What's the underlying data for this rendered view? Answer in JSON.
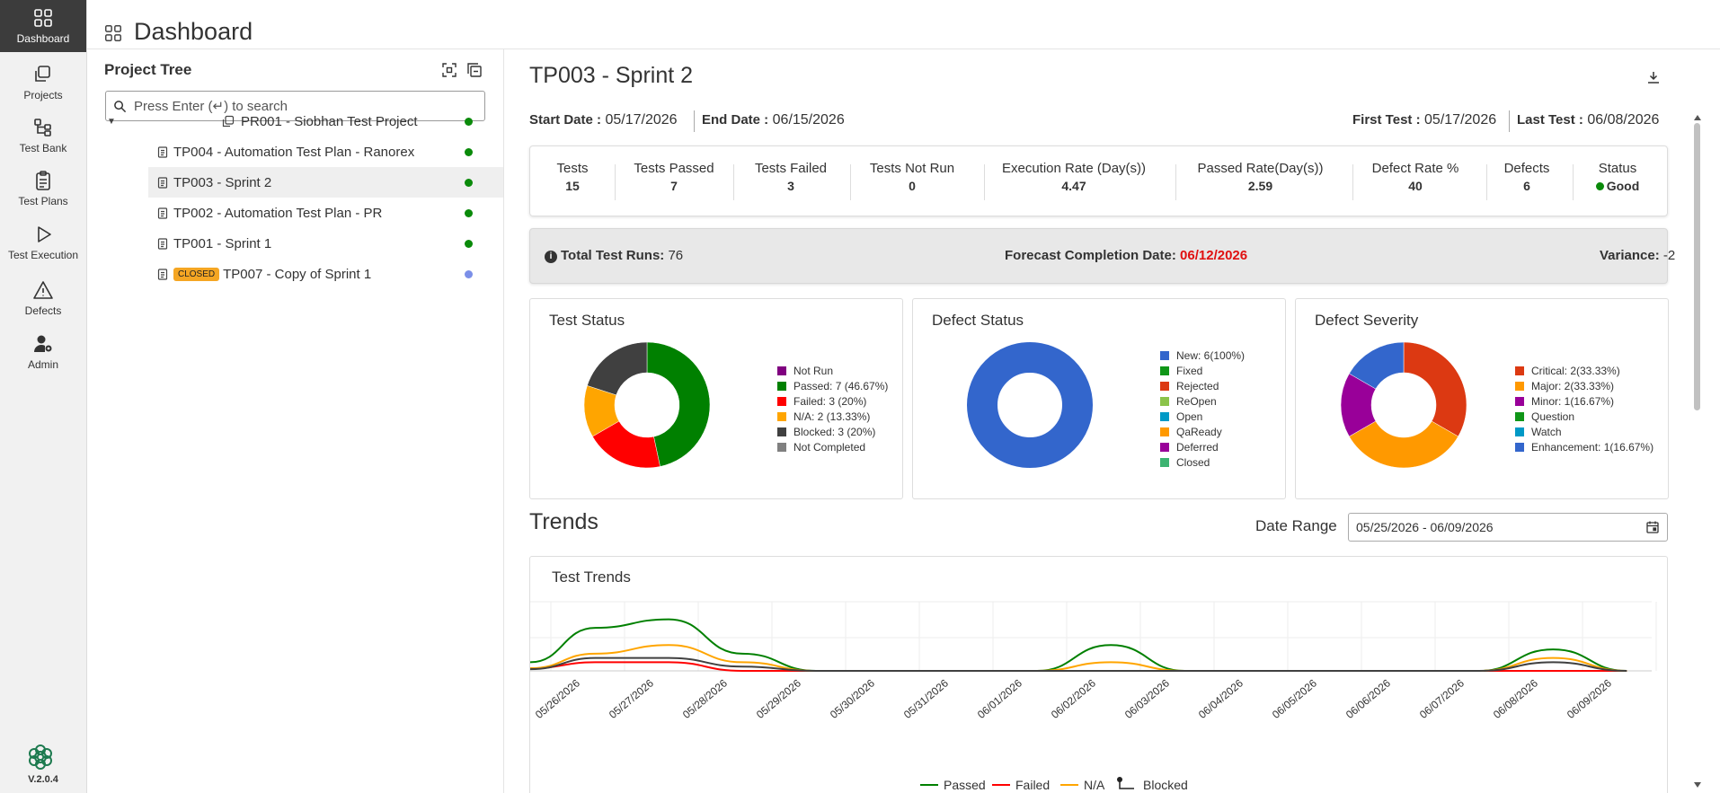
{
  "nav": {
    "items": [
      {
        "label": "Dashboard",
        "icon": "grid-icon",
        "active": true
      },
      {
        "label": "Projects",
        "icon": "projects-icon"
      },
      {
        "label": "Test Bank",
        "icon": "hierarchy-icon"
      },
      {
        "label": "Test Plans",
        "icon": "clipboard-icon"
      },
      {
        "label": "Test Execution",
        "icon": "play-icon"
      },
      {
        "label": "Defects",
        "icon": "warning-icon"
      },
      {
        "label": "Admin",
        "icon": "user-gear-icon"
      }
    ],
    "version": "V.2.0.4"
  },
  "header": {
    "title": "Dashboard"
  },
  "tree": {
    "title": "Project Tree",
    "search_placeholder": "Press Enter (↵) to search",
    "project": {
      "label": "PR001 - Siobhan Test Project",
      "status_color": "#0a8a0a"
    },
    "items": [
      {
        "label": "TP004 - Automation Test Plan - Ranorex",
        "status_color": "#0a8a0a",
        "selected": false
      },
      {
        "label": "TP003 - Sprint 2",
        "status_color": "#0a8a0a",
        "selected": true
      },
      {
        "label": "TP002 - Automation Test Plan - PR",
        "status_color": "#0a8a0a",
        "selected": false
      },
      {
        "label": "TP001 - Sprint 1",
        "status_color": "#0a8a0a",
        "selected": false
      },
      {
        "label": "TP007 - Copy of Sprint 1",
        "badge": "CLOSED",
        "status_color": "#7b8fe8",
        "selected": false
      }
    ]
  },
  "plan": {
    "title": "TP003 - Sprint 2",
    "start_label": "Start Date :",
    "start_date": "05/17/2026",
    "end_label": "End Date :",
    "end_date": "06/15/2026",
    "first_test_label": "First Test :",
    "first_test": "05/17/2026",
    "last_test_label": "Last Test :",
    "last_test": "06/08/2026"
  },
  "stats": [
    {
      "label": "Tests",
      "value": "15"
    },
    {
      "label": "Tests Passed",
      "value": "7"
    },
    {
      "label": "Tests Failed",
      "value": "3"
    },
    {
      "label": "Tests Not Run",
      "value": "0"
    },
    {
      "label": "Execution Rate (Day(s))",
      "value": "4.47"
    },
    {
      "label": "Passed Rate(Day(s))",
      "value": "2.59"
    },
    {
      "label": "Defect Rate %",
      "value": "40"
    },
    {
      "label": "Defects",
      "value": "6"
    },
    {
      "label": "Status",
      "value": "Good"
    }
  ],
  "summary": {
    "total_runs_label": "Total Test Runs:",
    "total_runs": "76",
    "forecast_label": "Forecast Completion Date:",
    "forecast_date": "06/12/2026",
    "variance_label": "Variance:",
    "variance": "-2"
  },
  "charts": [
    {
      "title": "Test Status",
      "type": "donut",
      "slices": [
        {
          "label": "Not Run",
          "value": 0,
          "color": "#800080",
          "legend": "Not Run"
        },
        {
          "label": "Passed",
          "value": 7,
          "color": "#008000",
          "legend": "Passed: 7 (46.67%)"
        },
        {
          "label": "Failed",
          "value": 3,
          "color": "#ff0000",
          "legend": "Failed: 3 (20%)"
        },
        {
          "label": "N/A",
          "value": 2,
          "color": "#ffa500",
          "legend": "N/A: 2 (13.33%)"
        },
        {
          "label": "Blocked",
          "value": 3,
          "color": "#404040",
          "legend": "Blocked: 3 (20%)"
        },
        {
          "label": "Not Completed",
          "value": 0,
          "color": "#808080",
          "legend": "Not Completed"
        }
      ]
    },
    {
      "title": "Defect Status",
      "type": "donut",
      "slices": [
        {
          "label": "New",
          "value": 6,
          "color": "#3366cc",
          "legend": "New: 6(100%)"
        },
        {
          "label": "Fixed",
          "value": 0,
          "color": "#109618",
          "legend": "Fixed"
        },
        {
          "label": "Rejected",
          "value": 0,
          "color": "#dc3912",
          "legend": "Rejected"
        },
        {
          "label": "ReOpen",
          "value": 0,
          "color": "#8bc34a",
          "legend": "ReOpen"
        },
        {
          "label": "Open",
          "value": 0,
          "color": "#0099c6",
          "legend": "Open"
        },
        {
          "label": "QaReady",
          "value": 0,
          "color": "#ff9900",
          "legend": "QaReady"
        },
        {
          "label": "Deferred",
          "value": 0,
          "color": "#990099",
          "legend": "Deferred"
        },
        {
          "label": "Closed",
          "value": 0,
          "color": "#3cb371",
          "legend": "Closed"
        }
      ]
    },
    {
      "title": "Defect Severity",
      "type": "donut",
      "slices": [
        {
          "label": "Critical",
          "value": 2,
          "color": "#dc3912",
          "legend": "Critical: 2(33.33%)"
        },
        {
          "label": "Major",
          "value": 2,
          "color": "#ff9900",
          "legend": "Major: 2(33.33%)"
        },
        {
          "label": "Minor",
          "value": 1,
          "color": "#990099",
          "legend": "Minor: 1(16.67%)"
        },
        {
          "label": "Question",
          "value": 0,
          "color": "#109618",
          "legend": "Question"
        },
        {
          "label": "Watch",
          "value": 0,
          "color": "#0099c6",
          "legend": "Watch"
        },
        {
          "label": "Enhancement",
          "value": 1,
          "color": "#3366cc",
          "legend": "Enhancement: 1(16.67%)"
        }
      ]
    }
  ],
  "trends": {
    "title": "Trends",
    "date_range_label": "Date Range",
    "date_range_value": "05/25/2026 - 06/09/2026"
  },
  "chart_data": {
    "type": "line",
    "title": "Test Trends",
    "x": [
      "05/26/2026",
      "05/27/2026",
      "05/28/2026",
      "05/29/2026",
      "05/30/2026",
      "05/31/2026",
      "06/01/2026",
      "06/02/2026",
      "06/03/2026",
      "06/04/2026",
      "06/05/2026",
      "06/06/2026",
      "06/07/2026",
      "06/08/2026",
      "06/09/2026"
    ],
    "series": [
      {
        "name": "Passed",
        "color": "#008000",
        "values": [
          5,
          6,
          2,
          0,
          0,
          0,
          0,
          3,
          0,
          0,
          0,
          0,
          0,
          2.5,
          0
        ],
        "start": 1
      },
      {
        "name": "Failed",
        "color": "#ff0000",
        "values": [
          1,
          1,
          0,
          0,
          0,
          0,
          0,
          0,
          0,
          0,
          0,
          0,
          0,
          0,
          0
        ],
        "start": 0.3
      },
      {
        "name": "N/A",
        "color": "#ffa500",
        "values": [
          2,
          3,
          1,
          0,
          0,
          0,
          0,
          1,
          0,
          0,
          0,
          0,
          0,
          1.5,
          0
        ],
        "start": 0.3
      },
      {
        "name": "Blocked",
        "color": "#404040",
        "values": [
          1.5,
          1.5,
          0.5,
          0,
          0,
          0,
          0,
          0,
          0,
          0,
          0,
          0,
          0,
          1,
          0
        ],
        "start": 0.2
      }
    ],
    "ylim": [
      0,
      7
    ],
    "legend": "bottom"
  }
}
